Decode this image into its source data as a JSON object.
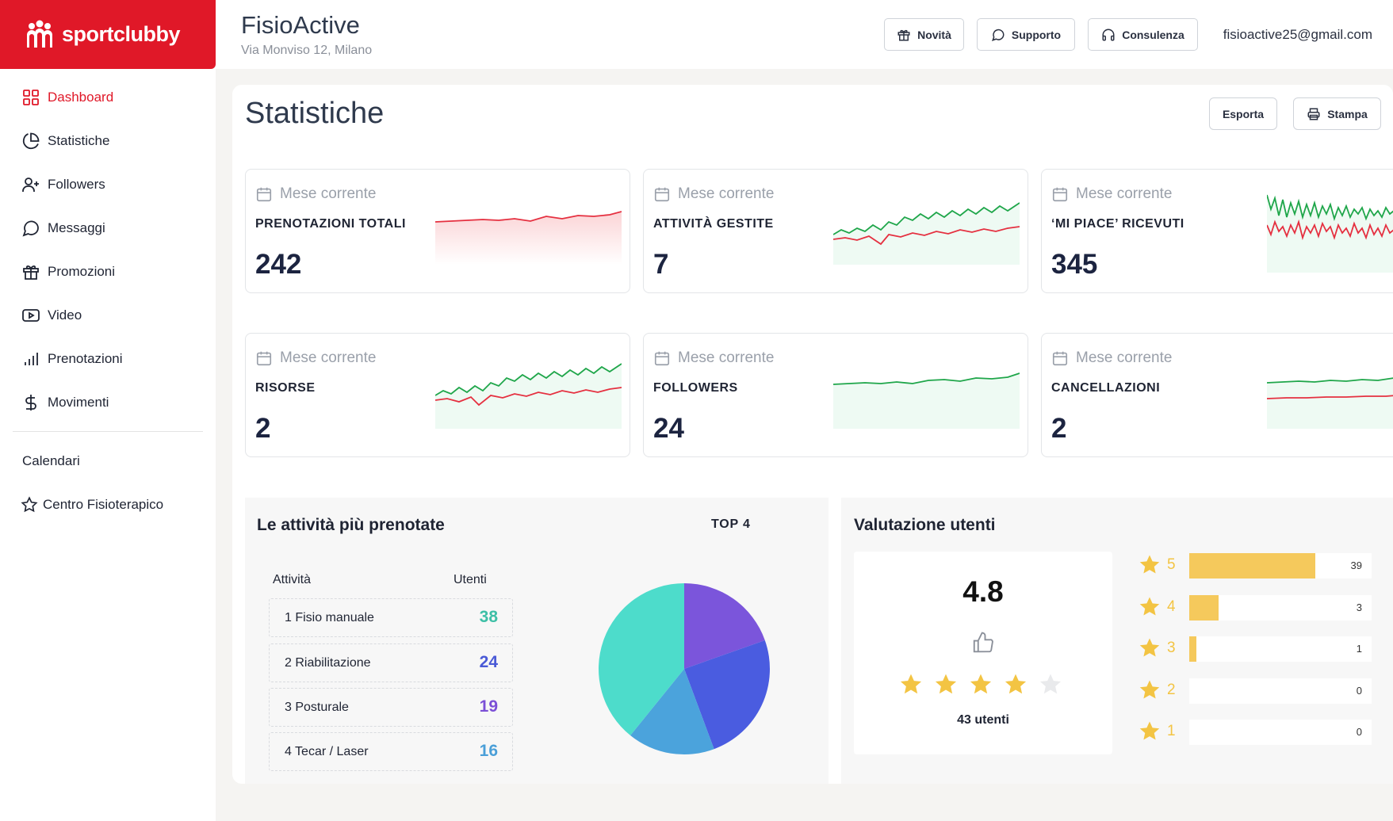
{
  "brand": {
    "name": "sportclubby",
    "color": "#e01828"
  },
  "sidebar": {
    "items": [
      {
        "label": "Dashboard",
        "icon": "grid-icon",
        "active": true
      },
      {
        "label": "Statistiche",
        "icon": "pie-chart-icon"
      },
      {
        "label": "Followers",
        "icon": "user-plus-icon"
      },
      {
        "label": "Messaggi",
        "icon": "message-circle-icon"
      },
      {
        "label": "Promozioni",
        "icon": "gift-icon"
      },
      {
        "label": "Video",
        "icon": "video-icon"
      },
      {
        "label": "Prenotazioni",
        "icon": "bar-chart-icon"
      },
      {
        "label": "Movimenti",
        "icon": "dollar-icon"
      }
    ],
    "calendari": "Calendari",
    "centro": "Centro Fisioterapico"
  },
  "header": {
    "title": "FisioActive",
    "address": "Via Monviso 12, Milano",
    "btn_novita": "Novità",
    "btn_supporto": "Supporto",
    "btn_consulenza": "Consulenza",
    "email": "fisioactive25@gmail.com"
  },
  "page": {
    "title": "Statistiche",
    "btn_esporta": "Esporta",
    "btn_stampa": "Stampa"
  },
  "stats": [
    {
      "period": "Mese corrente",
      "label": "PRENOTAZIONI TOTALI",
      "value": "242",
      "trend": "red"
    },
    {
      "period": "Mese corrente",
      "label": "ATTIVITÀ GESTITE",
      "value": "7",
      "trend": "green-red"
    },
    {
      "period": "Mese corrente",
      "label": "‘MI PIACE’ RICEVUTI",
      "value": "345",
      "trend": "green-red-noisy"
    },
    {
      "period": "Mese corrente",
      "label": "RISORSE",
      "value": "2",
      "trend": "green-red"
    },
    {
      "period": "Mese corrente",
      "label": "FOLLOWERS",
      "value": "24",
      "trend": "green"
    },
    {
      "period": "Mese corrente",
      "label": "CANCELLAZIONI",
      "value": "2",
      "trend": "green-red-flat"
    }
  ],
  "activities": {
    "title": "Le attività più prenotate",
    "top": "TOP 4",
    "col_activity": "Attività",
    "col_users": "Utenti",
    "rows": [
      {
        "name": "1 Fisio manuale",
        "users": "38",
        "color": "#3dbfa6"
      },
      {
        "name": "2 Riabilitazione",
        "users": "24",
        "color": "#4a5ad6"
      },
      {
        "name": "3 Posturale",
        "users": "19",
        "color": "#7b4fd6"
      },
      {
        "name": "4 Tecar / Laser",
        "users": "16",
        "color": "#4a9fd8"
      }
    ]
  },
  "chart_data": {
    "type": "pie",
    "categories": [
      "1 Fisio manuale",
      "2 Riabilitazione",
      "3 Posturale",
      "4 Tecar / Laser"
    ],
    "values": [
      38,
      24,
      19,
      16
    ],
    "colors": [
      "#4ddccb",
      "#4a5ce0",
      "#7b55db",
      "#4ba3dc"
    ]
  },
  "rating": {
    "title": "Valutazione utenti",
    "score": "4.8",
    "users": "43 utenti",
    "stars_filled": 4,
    "bars": [
      {
        "star": "5",
        "count": "39",
        "fraction": 0.69
      },
      {
        "star": "4",
        "count": "3",
        "fraction": 0.16
      },
      {
        "star": "3",
        "count": "1",
        "fraction": 0.04
      },
      {
        "star": "2",
        "count": "0",
        "fraction": 0
      },
      {
        "star": "1",
        "count": "0",
        "fraction": 0
      }
    ],
    "bar_color": "#f5c95c",
    "star_color": "#f3c443"
  }
}
